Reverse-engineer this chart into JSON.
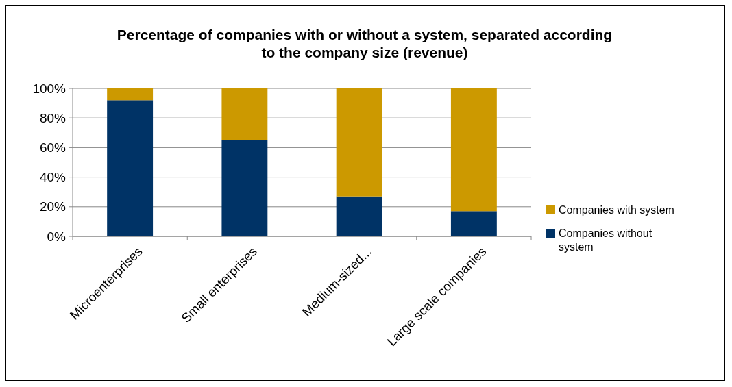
{
  "chart_data": {
    "type": "bar",
    "title": "Percentage of companies with or without a system, separated according to the company size (revenue)",
    "categories": [
      "Microenterprises",
      "Small enterprises",
      "Medium-sized...",
      "Large scale companies"
    ],
    "stacked": true,
    "series": [
      {
        "name": "Companies without system",
        "color": "#003366",
        "values": [
          92,
          65,
          27,
          17
        ]
      },
      {
        "name": "Companies with system",
        "color": "#cc9900",
        "values": [
          8,
          35,
          73,
          83
        ]
      }
    ],
    "ylim": [
      0,
      100
    ],
    "yticks": [
      {
        "value": 0,
        "label": "0%"
      },
      {
        "value": 20,
        "label": "20%"
      },
      {
        "value": 40,
        "label": "40%"
      },
      {
        "value": 60,
        "label": "60%"
      },
      {
        "value": 80,
        "label": "80%"
      },
      {
        "value": 100,
        "label": "100%"
      }
    ],
    "grid": "y",
    "legend": "right"
  }
}
